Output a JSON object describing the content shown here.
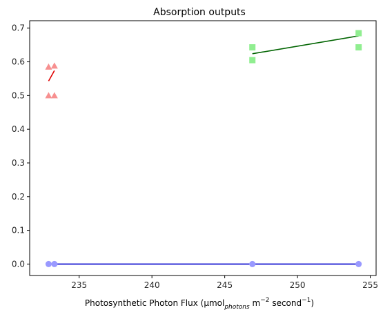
{
  "chart_data": {
    "type": "scatter",
    "title": "Absorption outputs",
    "xlabel": {
      "main": "Photosynthetic Photon Flux (µmol",
      "sub": "photons",
      "mid": " m",
      "sup1": "−2",
      "mid2": " second",
      "sup2": "−1",
      "end": ")"
    },
    "ylabel": "",
    "xlim": [
      231.6,
      255.4
    ],
    "ylim": [
      -0.034,
      0.722
    ],
    "xticks": [
      235,
      240,
      245,
      250,
      255
    ],
    "yticks": [
      0.0,
      0.1,
      0.2,
      0.3,
      0.4,
      0.5,
      0.6,
      0.7
    ],
    "grid": false,
    "series": [
      {
        "marker": "triangle",
        "color": "#f79090",
        "line_color": "#e00000",
        "points": [
          [
            232.9,
            0.585
          ],
          [
            233.3,
            0.588
          ],
          [
            232.9,
            0.5
          ],
          [
            233.3,
            0.5
          ]
        ],
        "fit": [
          [
            232.9,
            0.543
          ],
          [
            233.3,
            0.574
          ]
        ]
      },
      {
        "marker": "square",
        "color": "#90ee90",
        "line_color": "#006400",
        "points": [
          [
            246.9,
            0.643
          ],
          [
            246.9,
            0.605
          ],
          [
            254.2,
            0.685
          ],
          [
            254.2,
            0.643
          ]
        ],
        "fit": [
          [
            246.9,
            0.624
          ],
          [
            254.2,
            0.677
          ]
        ]
      },
      {
        "marker": "circle",
        "color": "#9999ff",
        "line_color": "#0000cc",
        "points": [
          [
            232.9,
            0.0
          ],
          [
            233.3,
            0.0
          ],
          [
            246.9,
            0.0
          ],
          [
            254.2,
            0.0
          ]
        ],
        "fit": [
          [
            232.9,
            0.0
          ],
          [
            254.2,
            0.0
          ]
        ]
      }
    ]
  }
}
